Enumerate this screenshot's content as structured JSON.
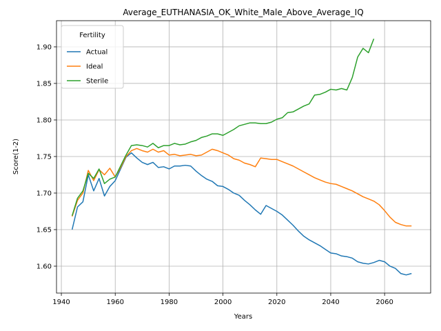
{
  "chart_data": {
    "type": "line",
    "title": "Average_EUTHANASIA_OK_White_Male_Above_Average_IQ",
    "x_label": "Years",
    "y_label": "Score(1-2)",
    "legend_title": "Fertility",
    "legend": "upper left",
    "grid": true,
    "xlim": [
      1938.2,
      2077.1
    ],
    "ylim": [
      1.5632,
      1.9358
    ],
    "xticks": [
      1940,
      1960,
      1980,
      2000,
      2020,
      2040,
      2060
    ],
    "yticks": [
      {
        "value": 1.6,
        "label": "1.60"
      },
      {
        "value": 1.65,
        "label": "1.65"
      },
      {
        "value": 1.7,
        "label": "1.70"
      },
      {
        "value": 1.75,
        "label": "1.75"
      },
      {
        "value": 1.8,
        "label": "1.80"
      },
      {
        "value": 1.85,
        "label": "1.85"
      },
      {
        "value": 1.9,
        "label": "1.90"
      }
    ],
    "x": [
      1944,
      1946,
      1948,
      1950,
      1952,
      1954,
      1956,
      1958,
      1960,
      1962,
      1964,
      1966,
      1968,
      1970,
      1972,
      1974,
      1976,
      1978,
      1980,
      1982,
      1984,
      1986,
      1988,
      1990,
      1992,
      1994,
      1996,
      1998,
      2000,
      2002,
      2004,
      2006,
      2008,
      2010,
      2012,
      2014,
      2016,
      2018,
      2020,
      2022,
      2024,
      2026,
      2028,
      2030,
      2032,
      2034,
      2036,
      2038,
      2040,
      2042,
      2044,
      2046,
      2048,
      2050,
      2052,
      2054,
      2056,
      2058,
      2060,
      2062,
      2064,
      2066,
      2068,
      2070
    ],
    "series": [
      {
        "name": "Actual",
        "color": "#1f77b4",
        "values": [
          1.65,
          1.681,
          1.688,
          1.725,
          1.703,
          1.72,
          1.696,
          1.709,
          1.717,
          1.733,
          1.749,
          1.755,
          1.748,
          1.742,
          1.739,
          1.742,
          1.735,
          1.736,
          1.733,
          1.737,
          1.737,
          1.738,
          1.737,
          1.73,
          1.724,
          1.719,
          1.716,
          1.71,
          1.709,
          1.705,
          1.7,
          1.697,
          1.69,
          1.684,
          1.677,
          1.671,
          1.683,
          1.679,
          1.675,
          1.67,
          1.663,
          1.656,
          1.648,
          1.641,
          1.636,
          1.632,
          1.628,
          1.623,
          1.618,
          1.617,
          1.614,
          1.613,
          1.611,
          1.606,
          1.604,
          1.603,
          1.605,
          1.608,
          1.606,
          1.6,
          1.597,
          1.59,
          1.588,
          1.59
        ]
      },
      {
        "name": "Ideal",
        "color": "#ff7f0e",
        "values": [
          1.668,
          1.69,
          1.7,
          1.731,
          1.717,
          1.732,
          1.725,
          1.734,
          1.722,
          1.735,
          1.75,
          1.758,
          1.761,
          1.758,
          1.756,
          1.76,
          1.756,
          1.758,
          1.752,
          1.753,
          1.751,
          1.752,
          1.753,
          1.751,
          1.752,
          1.756,
          1.76,
          1.758,
          1.755,
          1.752,
          1.747,
          1.745,
          1.741,
          1.739,
          1.736,
          1.748,
          1.747,
          1.746,
          1.746,
          1.743,
          1.74,
          1.737,
          1.733,
          1.729,
          1.725,
          1.721,
          1.718,
          1.715,
          1.713,
          1.712,
          1.709,
          1.706,
          1.703,
          1.699,
          1.695,
          1.692,
          1.689,
          1.684,
          1.676,
          1.667,
          1.66,
          1.657,
          1.655,
          1.655
        ]
      },
      {
        "name": "Sterile",
        "color": "#2ca02c",
        "values": [
          1.669,
          1.693,
          1.703,
          1.727,
          1.72,
          1.733,
          1.713,
          1.719,
          1.722,
          1.737,
          1.752,
          1.765,
          1.766,
          1.765,
          1.763,
          1.768,
          1.762,
          1.765,
          1.765,
          1.768,
          1.766,
          1.767,
          1.77,
          1.772,
          1.776,
          1.778,
          1.781,
          1.781,
          1.779,
          1.783,
          1.787,
          1.792,
          1.794,
          1.796,
          1.796,
          1.795,
          1.795,
          1.797,
          1.801,
          1.803,
          1.81,
          1.811,
          1.815,
          1.819,
          1.822,
          1.834,
          1.835,
          1.838,
          1.842,
          1.841,
          1.843,
          1.841,
          1.858,
          1.886,
          1.898,
          1.892,
          1.911,
          null,
          null,
          null,
          null,
          null,
          null,
          null
        ]
      }
    ]
  }
}
